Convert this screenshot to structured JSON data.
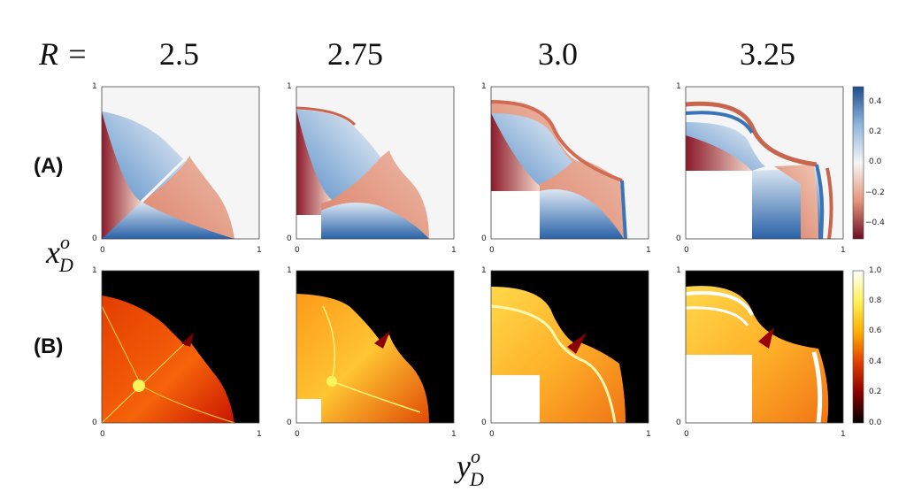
{
  "header": {
    "r_label": "R =",
    "r_values": [
      "2.5",
      "2.75",
      "3.0",
      "3.25"
    ]
  },
  "rows": [
    {
      "label": "(A)",
      "colormap": "coolwarm_r"
    },
    {
      "label": "(B)",
      "colormap": "hot"
    }
  ],
  "axes": {
    "x_label_main": "y",
    "x_label_sup": "o",
    "x_label_sub": "D",
    "y_label_main": "x",
    "y_label_sup": "o",
    "y_label_sub": "D",
    "tick_0": "0",
    "tick_1": "1"
  },
  "colorbars": {
    "A": {
      "ticks": [
        "0.4",
        "0.2",
        "0.0",
        "−0.2",
        "−0.4"
      ],
      "range": [
        -0.5,
        0.5
      ]
    },
    "B": {
      "ticks": [
        "1.0",
        "0.8",
        "0.6",
        "0.4",
        "0.2",
        "0.0"
      ],
      "range": [
        0.0,
        1.0
      ]
    }
  }
}
